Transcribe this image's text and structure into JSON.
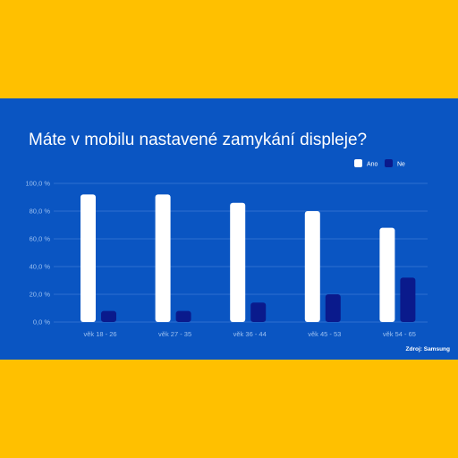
{
  "chart_data": {
    "type": "bar",
    "title": "Máte v mobilu nastavené zamykání displeje?",
    "categories": [
      "věk 18 - 26",
      "věk 27 - 35",
      "věk 36 - 44",
      "věk 45 - 53",
      "věk 54 - 65"
    ],
    "series": [
      {
        "name": "Ano",
        "color": "#FFFFFF",
        "values": [
          92,
          92,
          86,
          80,
          68
        ]
      },
      {
        "name": "Ne",
        "color": "#0A1A8C",
        "values": [
          8,
          8,
          14,
          20,
          32
        ]
      }
    ],
    "y_ticks": [
      "0,0 %",
      "20,0 %",
      "40,0 %",
      "60,0 %",
      "80,0 %",
      "100,0 %"
    ],
    "ylim": [
      0,
      100
    ],
    "grid": true,
    "legend_position": "top-right",
    "source": "Zdroj: Samsung"
  },
  "colors": {
    "background": "#0A55C2",
    "frame": "#FFC000"
  }
}
